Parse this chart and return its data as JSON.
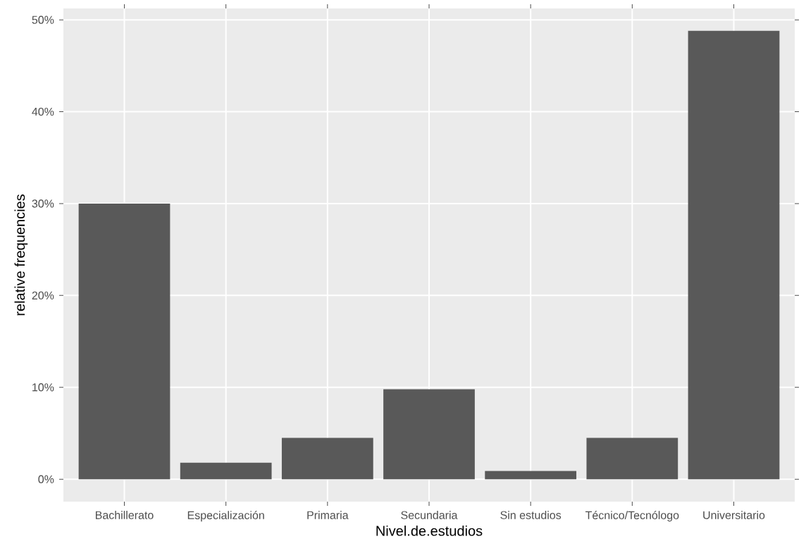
{
  "chart_data": {
    "type": "bar",
    "xlabel": "Nivel.de.estudios",
    "ylabel": "relative frequencies",
    "categories": [
      "Bachillerato",
      "Especialización",
      "Primaria",
      "Secundaria",
      "Sin estudios",
      "Técnico/Tecnólogo",
      "Universitario"
    ],
    "values": [
      30.0,
      1.8,
      4.5,
      9.8,
      0.9,
      4.5,
      48.8
    ],
    "color": "#595959",
    "ylim": [
      -2.44,
      51.24
    ],
    "yticks": [
      {
        "value": 0,
        "label": "0%"
      },
      {
        "value": 10,
        "label": "10%"
      },
      {
        "value": 20,
        "label": "20%"
      },
      {
        "value": 30,
        "label": "30%"
      },
      {
        "value": 40,
        "label": "40%"
      },
      {
        "value": 50,
        "label": "50%"
      }
    ],
    "grid": true
  }
}
